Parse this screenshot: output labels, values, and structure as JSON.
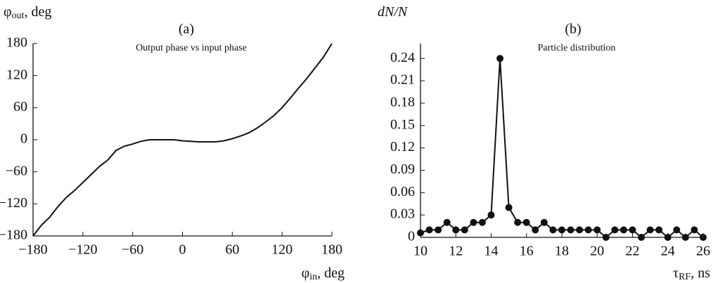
{
  "chart_data": [
    {
      "type": "line",
      "panel": "(a)",
      "title": "Output phase vs input phase",
      "ylabel": [
        "φ",
        "out",
        ", deg"
      ],
      "xlabel": [
        "φ",
        "in",
        ", deg"
      ],
      "x": [
        -180,
        -170,
        -160,
        -150,
        -140,
        -130,
        -120,
        -110,
        -100,
        -90,
        -80,
        -70,
        -60,
        -50,
        -40,
        -30,
        -20,
        -10,
        0,
        10,
        20,
        30,
        40,
        50,
        60,
        70,
        80,
        90,
        100,
        110,
        120,
        130,
        140,
        150,
        160,
        170,
        180
      ],
      "series": [
        {
          "color": "#111111",
          "values": [
            -180,
            -160,
            -145,
            -125,
            -108,
            -95,
            -80,
            -65,
            -50,
            -38,
            -20,
            -12,
            -8,
            -3,
            0,
            0,
            0,
            0,
            -2,
            -3,
            -4,
            -4,
            -4,
            -2,
            2,
            7,
            13,
            22,
            33,
            45,
            60,
            78,
            97,
            115,
            135,
            155,
            180
          ]
        }
      ],
      "xlim": [
        -180,
        180
      ],
      "ylim": [
        -180,
        180
      ],
      "xticks": [
        {
          "value": -180,
          "label": "−180"
        },
        {
          "value": -120,
          "label": "−120"
        },
        {
          "value": -60,
          "label": "−60"
        },
        0,
        60,
        120,
        180
      ],
      "yticks": [
        {
          "value": -180,
          "label": "−180"
        },
        {
          "value": -120,
          "label": "−120"
        },
        {
          "value": -60,
          "label": "−60"
        },
        0,
        60,
        120,
        180
      ],
      "grid": false
    },
    {
      "type": "line",
      "panel": "(b)",
      "title": "Particle distribution",
      "ylabel": [
        "dN/N"
      ],
      "xlabel": [
        "τ",
        "RF",
        ", ns"
      ],
      "marker": "circle",
      "x": [
        10,
        10.5,
        11,
        11.5,
        12,
        12.5,
        13,
        13.5,
        14,
        14.5,
        15,
        15.5,
        16,
        16.5,
        17,
        17.5,
        18,
        18.5,
        19,
        19.5,
        20,
        20.5,
        21,
        21.5,
        22,
        22.5,
        23,
        23.5,
        24,
        24.5,
        25,
        25.5,
        26
      ],
      "series": [
        {
          "color": "#111111",
          "values": [
            0.006,
            0.01,
            0.01,
            0.02,
            0.01,
            0.01,
            0.02,
            0.02,
            0.03,
            0.24,
            0.04,
            0.02,
            0.02,
            0.01,
            0.02,
            0.01,
            0.01,
            0.01,
            0.01,
            0.01,
            0.01,
            0,
            0.01,
            0.01,
            0.01,
            0,
            0.01,
            0.01,
            0,
            0.01,
            0,
            0.01,
            0
          ]
        }
      ],
      "xlim": [
        10,
        26
      ],
      "ylim": [
        0,
        0.26
      ],
      "xticks": [
        10,
        12,
        14,
        16,
        18,
        20,
        22,
        24,
        26
      ],
      "yticks": [
        0,
        0.03,
        0.06,
        0.09,
        0.12,
        0.15,
        0.18,
        0.21,
        0.24
      ],
      "grid": false
    }
  ]
}
